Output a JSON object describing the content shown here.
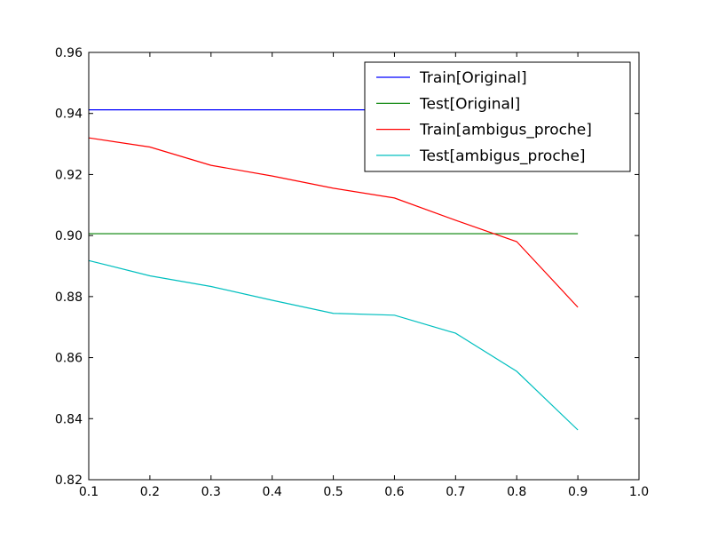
{
  "chart_data": {
    "type": "line",
    "title": "",
    "xlabel": "",
    "ylabel": "",
    "xlim": [
      0.1,
      1.0
    ],
    "ylim": [
      0.82,
      0.96
    ],
    "xticks": [
      "0.1",
      "0.2",
      "0.3",
      "0.4",
      "0.5",
      "0.6",
      "0.7",
      "0.8",
      "0.9",
      "1.0"
    ],
    "yticks": [
      "0.82",
      "0.84",
      "0.86",
      "0.88",
      "0.90",
      "0.92",
      "0.94",
      "0.96"
    ],
    "grid": false,
    "legend_position": "top-right",
    "x": [
      0.1,
      0.2,
      0.3,
      0.4,
      0.5,
      0.6,
      0.7,
      0.8,
      0.9
    ],
    "series": [
      {
        "name": "Train[Original]",
        "color": "#0000ff",
        "values": [
          0.9412,
          0.9412,
          0.9412,
          0.9412,
          0.9412,
          0.9412,
          0.9412,
          0.9412,
          0.9412
        ]
      },
      {
        "name": "Test[Original]",
        "color": "#008000",
        "values": [
          0.9006,
          0.9006,
          0.9006,
          0.9006,
          0.9006,
          0.9006,
          0.9006,
          0.9006,
          0.9006
        ]
      },
      {
        "name": "Train[ambigus_proche]",
        "color": "#ff0000",
        "values": [
          0.932,
          0.929,
          0.923,
          0.9195,
          0.9155,
          0.9123,
          0.905,
          0.898,
          0.8765
        ]
      },
      {
        "name": "Test[ambigus_proche]",
        "color": "#00bfbf",
        "values": [
          0.8918,
          0.8868,
          0.8833,
          0.8788,
          0.8745,
          0.8739,
          0.868,
          0.8555,
          0.8363
        ]
      }
    ]
  }
}
